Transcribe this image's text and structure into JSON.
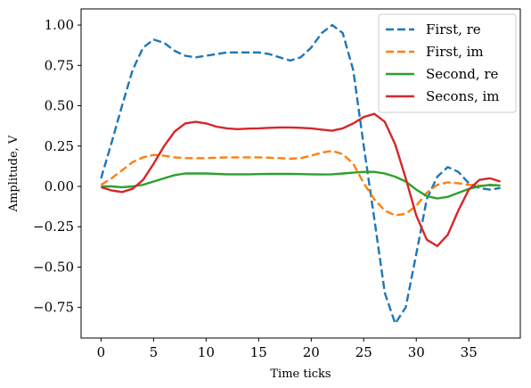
{
  "chart_data": {
    "type": "line",
    "xlabel": "Time ticks",
    "ylabel": "Amplitude, V",
    "xlim": [
      -1.9,
      39.9
    ],
    "ylim": [
      -0.94,
      1.1
    ],
    "xticks": [
      0,
      5,
      10,
      15,
      20,
      25,
      30,
      35
    ],
    "yticks": [
      -0.75,
      -0.5,
      -0.25,
      0.0,
      0.25,
      0.5,
      0.75,
      1.0
    ],
    "xtick_labels": [
      "0",
      "5",
      "10",
      "15",
      "20",
      "25",
      "30",
      "35"
    ],
    "ytick_labels": [
      "−0.75",
      "−0.50",
      "−0.25",
      "0.00",
      "0.25",
      "0.50",
      "0.75",
      "1.00"
    ],
    "grid": false,
    "legend_position": "top-right",
    "x": [
      0,
      1,
      2,
      3,
      4,
      5,
      6,
      7,
      8,
      9,
      10,
      11,
      12,
      13,
      14,
      15,
      16,
      17,
      18,
      19,
      20,
      21,
      22,
      23,
      24,
      25,
      26,
      27,
      28,
      29,
      30,
      31,
      32,
      33,
      34,
      35,
      36,
      37,
      38
    ],
    "series": [
      {
        "name": "First, re",
        "color": "#1f77b4",
        "style": "dashed",
        "values": [
          0.05,
          0.27,
          0.5,
          0.72,
          0.86,
          0.91,
          0.89,
          0.84,
          0.81,
          0.8,
          0.81,
          0.82,
          0.83,
          0.83,
          0.83,
          0.83,
          0.82,
          0.8,
          0.78,
          0.8,
          0.86,
          0.95,
          1.0,
          0.95,
          0.72,
          0.25,
          -0.2,
          -0.66,
          -0.85,
          -0.75,
          -0.42,
          -0.08,
          0.06,
          0.12,
          0.09,
          0.02,
          -0.01,
          -0.02,
          -0.01
        ]
      },
      {
        "name": "First, im",
        "color": "#ff7f0e",
        "style": "dashed",
        "values": [
          0.01,
          0.05,
          0.1,
          0.15,
          0.18,
          0.195,
          0.19,
          0.18,
          0.175,
          0.175,
          0.175,
          0.178,
          0.18,
          0.18,
          0.18,
          0.18,
          0.178,
          0.175,
          0.172,
          0.175,
          0.19,
          0.21,
          0.22,
          0.2,
          0.14,
          0.02,
          -0.08,
          -0.15,
          -0.18,
          -0.17,
          -0.12,
          -0.04,
          0.01,
          0.025,
          0.02,
          0.01,
          0.005,
          0.005,
          0.01
        ]
      },
      {
        "name": "Second, re",
        "color": "#2ca02c",
        "style": "solid",
        "values": [
          0.0,
          0.0,
          -0.005,
          0.0,
          0.01,
          0.03,
          0.05,
          0.07,
          0.08,
          0.08,
          0.08,
          0.077,
          0.075,
          0.075,
          0.075,
          0.076,
          0.077,
          0.077,
          0.077,
          0.076,
          0.075,
          0.074,
          0.075,
          0.08,
          0.085,
          0.09,
          0.09,
          0.08,
          0.06,
          0.03,
          -0.02,
          -0.06,
          -0.075,
          -0.065,
          -0.04,
          -0.015,
          0.0,
          0.01,
          0.005
        ]
      },
      {
        "name": "Secons, im",
        "color": "#d62728",
        "style": "solid",
        "values": [
          -0.005,
          -0.025,
          -0.035,
          -0.015,
          0.04,
          0.14,
          0.25,
          0.34,
          0.39,
          0.4,
          0.39,
          0.37,
          0.36,
          0.355,
          0.358,
          0.36,
          0.363,
          0.365,
          0.365,
          0.363,
          0.36,
          0.352,
          0.345,
          0.36,
          0.39,
          0.43,
          0.45,
          0.4,
          0.26,
          0.05,
          -0.18,
          -0.33,
          -0.37,
          -0.3,
          -0.15,
          -0.02,
          0.04,
          0.05,
          0.03
        ]
      }
    ]
  }
}
